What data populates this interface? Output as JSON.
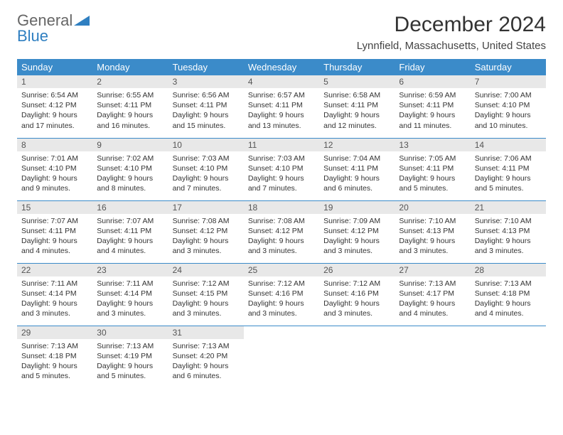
{
  "logo": {
    "general": "General",
    "blue": "Blue"
  },
  "title": "December 2024",
  "location": "Lynnfield, Massachusetts, United States",
  "colors": {
    "header_bg": "#3b8bc9",
    "header_text": "#ffffff",
    "daynum_bg": "#e8e8e8",
    "border": "#3b8bc9",
    "logo_blue": "#2f7fc1"
  },
  "weekdays": [
    "Sunday",
    "Monday",
    "Tuesday",
    "Wednesday",
    "Thursday",
    "Friday",
    "Saturday"
  ],
  "weeks": [
    [
      {
        "n": "1",
        "sr": "6:54 AM",
        "ss": "4:12 PM",
        "dl": "9 hours and 17 minutes."
      },
      {
        "n": "2",
        "sr": "6:55 AM",
        "ss": "4:11 PM",
        "dl": "9 hours and 16 minutes."
      },
      {
        "n": "3",
        "sr": "6:56 AM",
        "ss": "4:11 PM",
        "dl": "9 hours and 15 minutes."
      },
      {
        "n": "4",
        "sr": "6:57 AM",
        "ss": "4:11 PM",
        "dl": "9 hours and 13 minutes."
      },
      {
        "n": "5",
        "sr": "6:58 AM",
        "ss": "4:11 PM",
        "dl": "9 hours and 12 minutes."
      },
      {
        "n": "6",
        "sr": "6:59 AM",
        "ss": "4:11 PM",
        "dl": "9 hours and 11 minutes."
      },
      {
        "n": "7",
        "sr": "7:00 AM",
        "ss": "4:10 PM",
        "dl": "9 hours and 10 minutes."
      }
    ],
    [
      {
        "n": "8",
        "sr": "7:01 AM",
        "ss": "4:10 PM",
        "dl": "9 hours and 9 minutes."
      },
      {
        "n": "9",
        "sr": "7:02 AM",
        "ss": "4:10 PM",
        "dl": "9 hours and 8 minutes."
      },
      {
        "n": "10",
        "sr": "7:03 AM",
        "ss": "4:10 PM",
        "dl": "9 hours and 7 minutes."
      },
      {
        "n": "11",
        "sr": "7:03 AM",
        "ss": "4:10 PM",
        "dl": "9 hours and 7 minutes."
      },
      {
        "n": "12",
        "sr": "7:04 AM",
        "ss": "4:11 PM",
        "dl": "9 hours and 6 minutes."
      },
      {
        "n": "13",
        "sr": "7:05 AM",
        "ss": "4:11 PM",
        "dl": "9 hours and 5 minutes."
      },
      {
        "n": "14",
        "sr": "7:06 AM",
        "ss": "4:11 PM",
        "dl": "9 hours and 5 minutes."
      }
    ],
    [
      {
        "n": "15",
        "sr": "7:07 AM",
        "ss": "4:11 PM",
        "dl": "9 hours and 4 minutes."
      },
      {
        "n": "16",
        "sr": "7:07 AM",
        "ss": "4:11 PM",
        "dl": "9 hours and 4 minutes."
      },
      {
        "n": "17",
        "sr": "7:08 AM",
        "ss": "4:12 PM",
        "dl": "9 hours and 3 minutes."
      },
      {
        "n": "18",
        "sr": "7:08 AM",
        "ss": "4:12 PM",
        "dl": "9 hours and 3 minutes."
      },
      {
        "n": "19",
        "sr": "7:09 AM",
        "ss": "4:12 PM",
        "dl": "9 hours and 3 minutes."
      },
      {
        "n": "20",
        "sr": "7:10 AM",
        "ss": "4:13 PM",
        "dl": "9 hours and 3 minutes."
      },
      {
        "n": "21",
        "sr": "7:10 AM",
        "ss": "4:13 PM",
        "dl": "9 hours and 3 minutes."
      }
    ],
    [
      {
        "n": "22",
        "sr": "7:11 AM",
        "ss": "4:14 PM",
        "dl": "9 hours and 3 minutes."
      },
      {
        "n": "23",
        "sr": "7:11 AM",
        "ss": "4:14 PM",
        "dl": "9 hours and 3 minutes."
      },
      {
        "n": "24",
        "sr": "7:12 AM",
        "ss": "4:15 PM",
        "dl": "9 hours and 3 minutes."
      },
      {
        "n": "25",
        "sr": "7:12 AM",
        "ss": "4:16 PM",
        "dl": "9 hours and 3 minutes."
      },
      {
        "n": "26",
        "sr": "7:12 AM",
        "ss": "4:16 PM",
        "dl": "9 hours and 3 minutes."
      },
      {
        "n": "27",
        "sr": "7:13 AM",
        "ss": "4:17 PM",
        "dl": "9 hours and 4 minutes."
      },
      {
        "n": "28",
        "sr": "7:13 AM",
        "ss": "4:18 PM",
        "dl": "9 hours and 4 minutes."
      }
    ],
    [
      {
        "n": "29",
        "sr": "7:13 AM",
        "ss": "4:18 PM",
        "dl": "9 hours and 5 minutes."
      },
      {
        "n": "30",
        "sr": "7:13 AM",
        "ss": "4:19 PM",
        "dl": "9 hours and 5 minutes."
      },
      {
        "n": "31",
        "sr": "7:13 AM",
        "ss": "4:20 PM",
        "dl": "9 hours and 6 minutes."
      },
      null,
      null,
      null,
      null
    ]
  ],
  "labels": {
    "sunrise": "Sunrise: ",
    "sunset": "Sunset: ",
    "daylight": "Daylight: "
  }
}
